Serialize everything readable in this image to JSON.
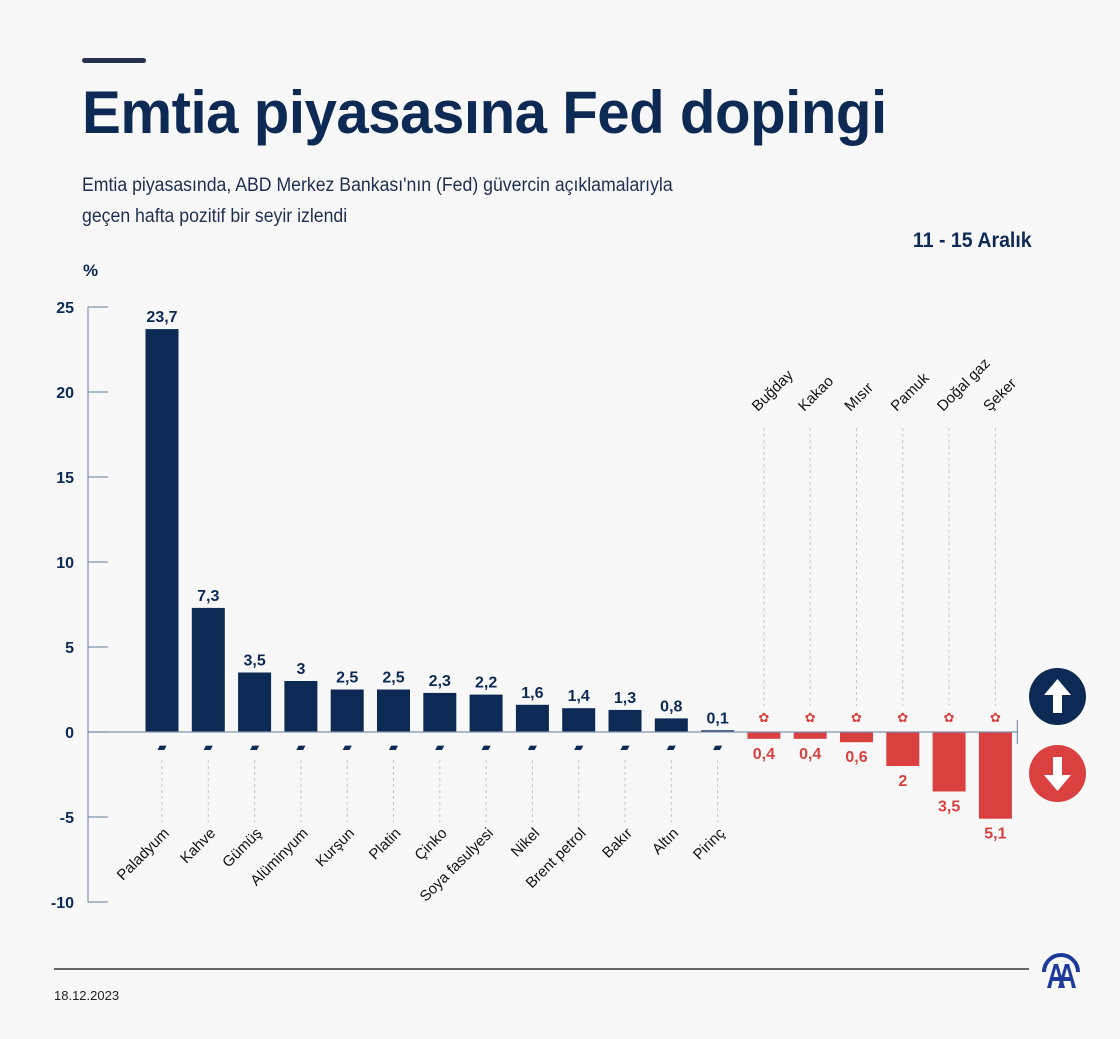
{
  "header": {
    "title": "Emtia piyasasına Fed dopingi",
    "subtitle_line1": "Emtia piyasasında, ABD Merkez Bankası'nın (Fed) güvercin açıklamalarıyla",
    "subtitle_line2": "geçen hafta pozitif bir seyir izlendi",
    "date_range": "11 - 15 Aralık",
    "unit_label": "%"
  },
  "footer": {
    "date": "18.12.2023",
    "logo": "AA"
  },
  "legend": {
    "up_icon": "arrow-up-icon",
    "down_icon": "arrow-down-icon"
  },
  "colors": {
    "positive": "#0d2a55",
    "negative": "#d9403f",
    "axis": "#7f93ad",
    "text_dark": "#0d2a55"
  },
  "chart_data": {
    "type": "bar",
    "title": "Emtia piyasasına Fed dopingi",
    "xlabel": "",
    "ylabel": "%",
    "ylim": [
      -10,
      25
    ],
    "yticks": [
      25,
      20,
      15,
      10,
      5,
      0,
      -5,
      -10
    ],
    "grid": false,
    "legend": "right",
    "categories": [
      "Paladyum",
      "Kahve",
      "Gümüş",
      "Alüminyum",
      "Kurşun",
      "Platin",
      "Çinko",
      "Soya fasulyesi",
      "Nikel",
      "Brent petrol",
      "Bakır",
      "Altın",
      "Pirinç",
      "Buğday",
      "Kakao",
      "Mısır",
      "Pamuk",
      "Doğal gaz",
      "Şeker"
    ],
    "values": [
      23.7,
      7.3,
      3.5,
      3,
      2.5,
      2.5,
      2.3,
      2.2,
      1.6,
      1.4,
      1.3,
      0.8,
      0.1,
      -0.4,
      -0.4,
      -0.6,
      -2,
      -3.5,
      -5.1
    ],
    "labels": [
      "23,7",
      "7,3",
      "3,5",
      "3",
      "2,5",
      "2,5",
      "2,3",
      "2,2",
      "1,6",
      "1,4",
      "1,3",
      "0,8",
      "0,1",
      "0,4",
      "0,4",
      "0,6",
      "2",
      "3,5",
      "5,1"
    ],
    "icons": [
      "metal-ingot-icon",
      "coffee-bean-icon",
      "metal-ingot-icon",
      "metal-ingot-icon",
      "metal-ingot-icon",
      "metal-ingot-icon",
      "metal-ingot-icon",
      "soybean-icon",
      "metal-ingot-icon",
      "oil-barrel-icon",
      "metal-ingot-icon",
      "metal-ingot-icon",
      "rice-sack-icon",
      "wheat-icon",
      "cocoa-icon",
      "corn-icon",
      "cotton-icon",
      "gas-flame-icon",
      "sugar-icon"
    ]
  }
}
